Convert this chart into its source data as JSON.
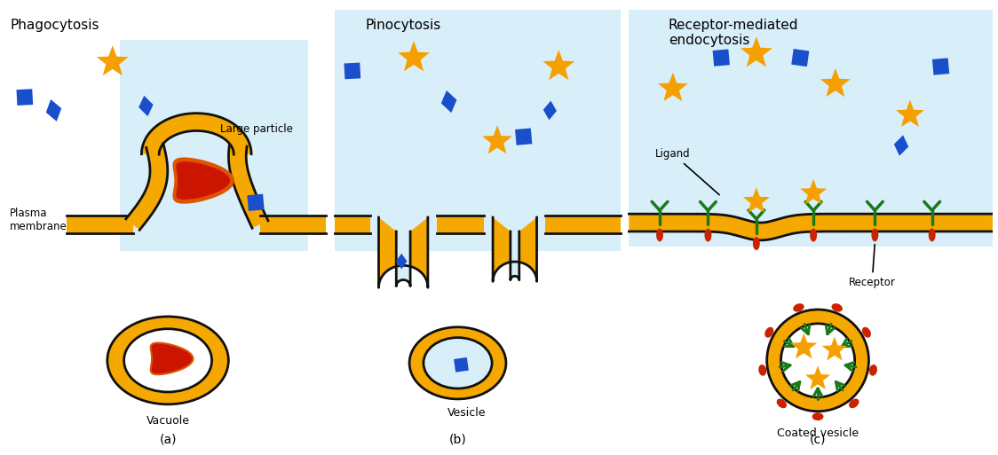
{
  "title_phago": "Phagocytosis",
  "title_pino": "Pinocytosis",
  "title_rme": "Receptor-mediated\nendocytosis",
  "label_large_particle": "Large particle",
  "label_plasma_membrane": "Plasma\nmembrane",
  "label_vacuole": "Vacuole",
  "label_vesicle": "Vesicle",
  "label_coated_vesicle": "Coated vesicle",
  "label_ligand": "Ligand",
  "label_receptor": "Receptor",
  "label_a": "(a)",
  "label_b": "(b)",
  "label_c": "(c)",
  "color_membrane_yellow": "#F5A800",
  "color_membrane_outline": "#111111",
  "color_cell_bg": "#d8eef8",
  "color_particle_red": "#cc1500",
  "color_particle_orange": "#dd5500",
  "color_star_orange": "#F5A000",
  "color_diamond_blue": "#1a4fcc",
  "color_square_blue": "#1a4fcc",
  "color_receptor_red": "#cc2200",
  "color_receptor_green": "#1a7a1a",
  "color_white": "#ffffff",
  "color_bg": "#ffffff",
  "figsize": [
    11.24,
    5.13
  ]
}
